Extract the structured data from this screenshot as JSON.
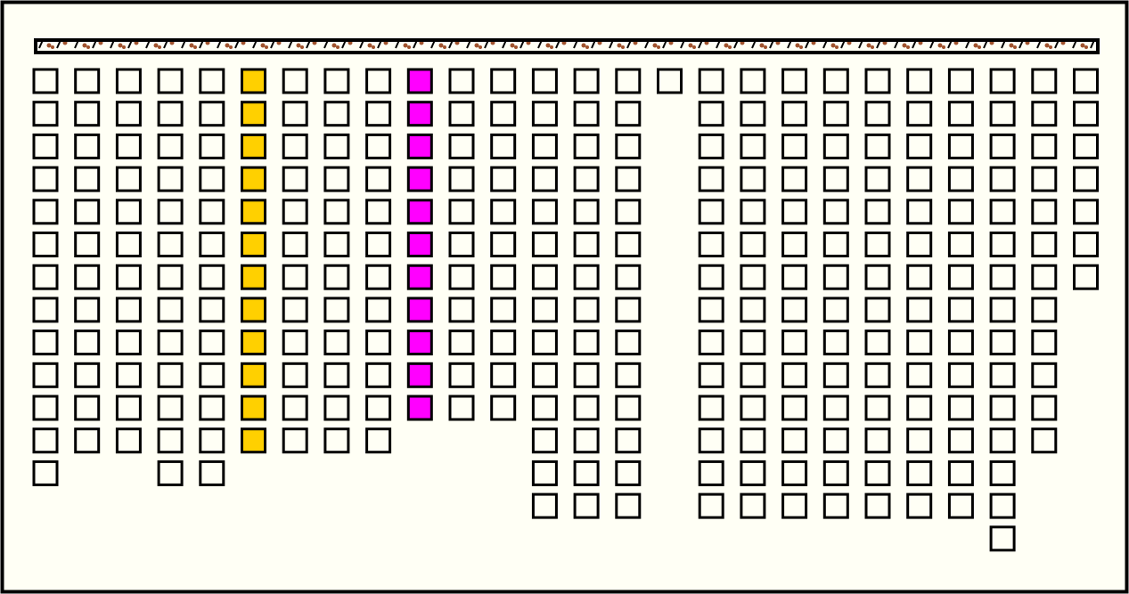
{
  "board": {
    "columns": [
      {
        "count": 13
      },
      {
        "count": 12
      },
      {
        "count": 12
      },
      {
        "count": 13
      },
      {
        "count": 13
      },
      {
        "count": 12,
        "color": "#ffd000"
      },
      {
        "count": 12
      },
      {
        "count": 12
      },
      {
        "count": 12
      },
      {
        "count": 11,
        "color": "#ff00ff"
      },
      {
        "count": 11
      },
      {
        "count": 11
      },
      {
        "count": 14
      },
      {
        "count": 14
      },
      {
        "count": 14
      },
      {
        "count": 1
      },
      {
        "count": 14
      },
      {
        "count": 14
      },
      {
        "count": 14
      },
      {
        "count": 14
      },
      {
        "count": 14
      },
      {
        "count": 14
      },
      {
        "count": 14
      },
      {
        "count": 15
      },
      {
        "count": 12
      },
      {
        "count": 7
      }
    ]
  }
}
